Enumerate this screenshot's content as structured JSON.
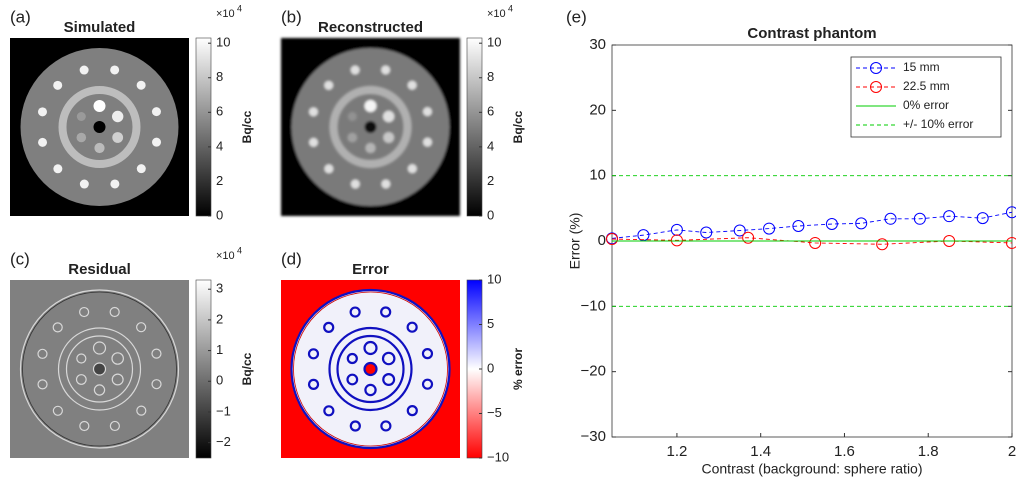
{
  "chart_data": [
    {
      "type": "image",
      "panel_label": "(a)",
      "title": "Simulated",
      "colorbar_label": "Bq/cc",
      "multiplier_base": "×10",
      "multiplier_exponent": "4",
      "colormap": "gray",
      "clim": [
        0,
        10.3
      ],
      "cticks": [
        0,
        2,
        4,
        6,
        8,
        10
      ]
    },
    {
      "type": "image",
      "panel_label": "(b)",
      "title": "Reconstructed",
      "colorbar_label": "Bq/cc",
      "multiplier_base": "×10",
      "multiplier_exponent": "4",
      "colormap": "gray",
      "clim": [
        0,
        10.3
      ],
      "cticks": [
        0,
        2,
        4,
        6,
        8,
        10
      ]
    },
    {
      "type": "image",
      "panel_label": "(c)",
      "title": "Residual",
      "colorbar_label": "Bq/cc",
      "multiplier_base": "×10",
      "multiplier_exponent": "4",
      "colormap": "gray",
      "clim": [
        -2.5,
        3.3
      ],
      "cticks": [
        {
          "value": -2,
          "label": "−2"
        },
        {
          "value": -1,
          "label": "−1"
        },
        0,
        1,
        2,
        3
      ]
    },
    {
      "type": "image",
      "panel_label": "(d)",
      "title": "Error",
      "colorbar_label": "% error",
      "colormap": "bwr",
      "clim": [
        -10,
        10
      ],
      "cticks": [
        {
          "value": -10,
          "label": "−10"
        },
        {
          "value": -5,
          "label": "−5"
        },
        0,
        5,
        10
      ]
    },
    {
      "type": "line",
      "panel_label": "(e)",
      "title": "Contrast phantom",
      "xlabel": "Contrast (background: sphere ratio)",
      "ylabel": "Error (%)",
      "xlim": [
        1.045,
        2
      ],
      "ylim": [
        -30,
        30
      ],
      "xticks": [
        1.2,
        1.4,
        1.6,
        1.8,
        2
      ],
      "yticks": [
        {
          "value": -30,
          "label": "−30"
        },
        {
          "value": -20,
          "label": "−20"
        },
        {
          "value": -10,
          "label": "−10"
        },
        0,
        10,
        20,
        30
      ],
      "legend": "upper right",
      "series": [
        {
          "name": "15 mm",
          "color": "#0000ff",
          "line_style": "dashed",
          "marker": "circle",
          "x": [
            1.045,
            1.12,
            1.2,
            1.27,
            1.35,
            1.42,
            1.49,
            1.57,
            1.64,
            1.71,
            1.78,
            1.85,
            1.93,
            2.0
          ],
          "values": [
            0.4,
            0.9,
            1.7,
            1.3,
            1.6,
            1.9,
            2.3,
            2.6,
            2.7,
            3.4,
            3.4,
            3.8,
            3.5,
            4.4
          ]
        },
        {
          "name": "22.5 mm",
          "color": "#ff0000",
          "line_style": "dashed",
          "marker": "circle",
          "x": [
            1.045,
            1.2,
            1.37,
            1.53,
            1.69,
            1.85,
            2.0
          ],
          "values": [
            0.3,
            0.1,
            0.5,
            -0.3,
            -0.5,
            0,
            -0.3
          ]
        },
        {
          "name": "0% error",
          "color": "#00cc00",
          "line_style": "solid",
          "x": [
            1.045,
            2
          ],
          "values": [
            0,
            0
          ]
        },
        {
          "name": "+/- 10% error",
          "color": "#00cc00",
          "line_style": "dashed",
          "levels": [
            10,
            -10
          ]
        }
      ]
    }
  ]
}
